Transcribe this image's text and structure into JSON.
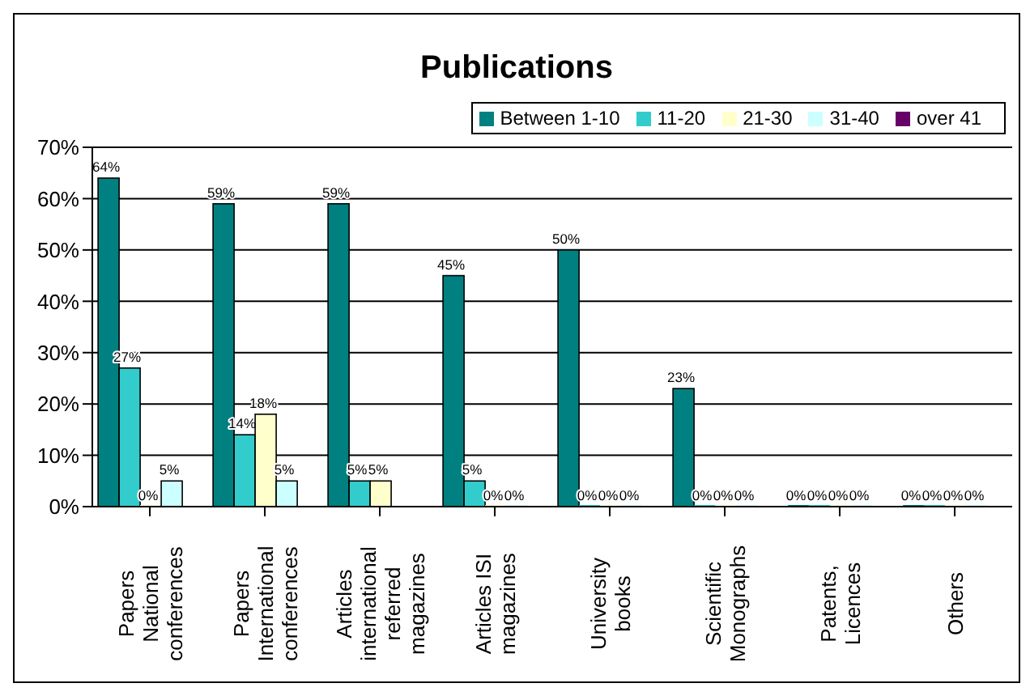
{
  "chart_data": {
    "type": "bar",
    "title": "Publications",
    "categories": [
      "Papers National conferences",
      "Papers International conferences",
      "Articles international referred magazines",
      "Articles ISI magazines",
      "University books",
      "Scientific Monographs",
      "Patents, Licences",
      "Others"
    ],
    "series": [
      {
        "name": "Between 1-10",
        "color": "#008080",
        "values": [
          64,
          59,
          59,
          45,
          50,
          23,
          0,
          0
        ],
        "value_labels": [
          "64%",
          "59%",
          "59%",
          "45%",
          "50%",
          "23%",
          "0%",
          "0%"
        ]
      },
      {
        "name": "11-20",
        "color": "#33cccc",
        "values": [
          27,
          14,
          5,
          5,
          0,
          0,
          0,
          0
        ],
        "value_labels": [
          "27%",
          "14%",
          "5%",
          "5%",
          "0%",
          "0%",
          "0%",
          "0%"
        ]
      },
      {
        "name": "21-30",
        "color": "#ffffcc",
        "values": [
          0,
          18,
          5,
          0,
          0,
          0,
          0,
          0
        ],
        "value_labels": [
          "0%",
          "18%",
          "5%",
          "0%",
          "0%",
          "0%",
          "0%",
          "0%"
        ]
      },
      {
        "name": "31-40",
        "color": "#ccffff",
        "values": [
          5,
          5,
          null,
          0,
          0,
          0,
          0,
          0
        ],
        "value_labels": [
          "5%",
          "5%",
          null,
          "0%",
          "0%",
          "0%",
          "0%",
          "0%"
        ]
      },
      {
        "name": "over 41",
        "color": "#660066",
        "values": [
          null,
          null,
          null,
          null,
          null,
          null,
          null,
          null
        ],
        "value_labels": [
          null,
          null,
          null,
          null,
          null,
          null,
          null,
          null
        ]
      }
    ],
    "ylim": [
      0,
      70
    ],
    "yticks": [
      {
        "value": 0,
        "label": "0%"
      },
      {
        "value": 10,
        "label": "10%"
      },
      {
        "value": 20,
        "label": "20%"
      },
      {
        "value": 30,
        "label": "30%"
      },
      {
        "value": 40,
        "label": "40%"
      },
      {
        "value": 50,
        "label": "50%"
      },
      {
        "value": 60,
        "label": "60%"
      },
      {
        "value": 70,
        "label": "70%"
      }
    ],
    "grid": "y",
    "legend": "top right"
  }
}
